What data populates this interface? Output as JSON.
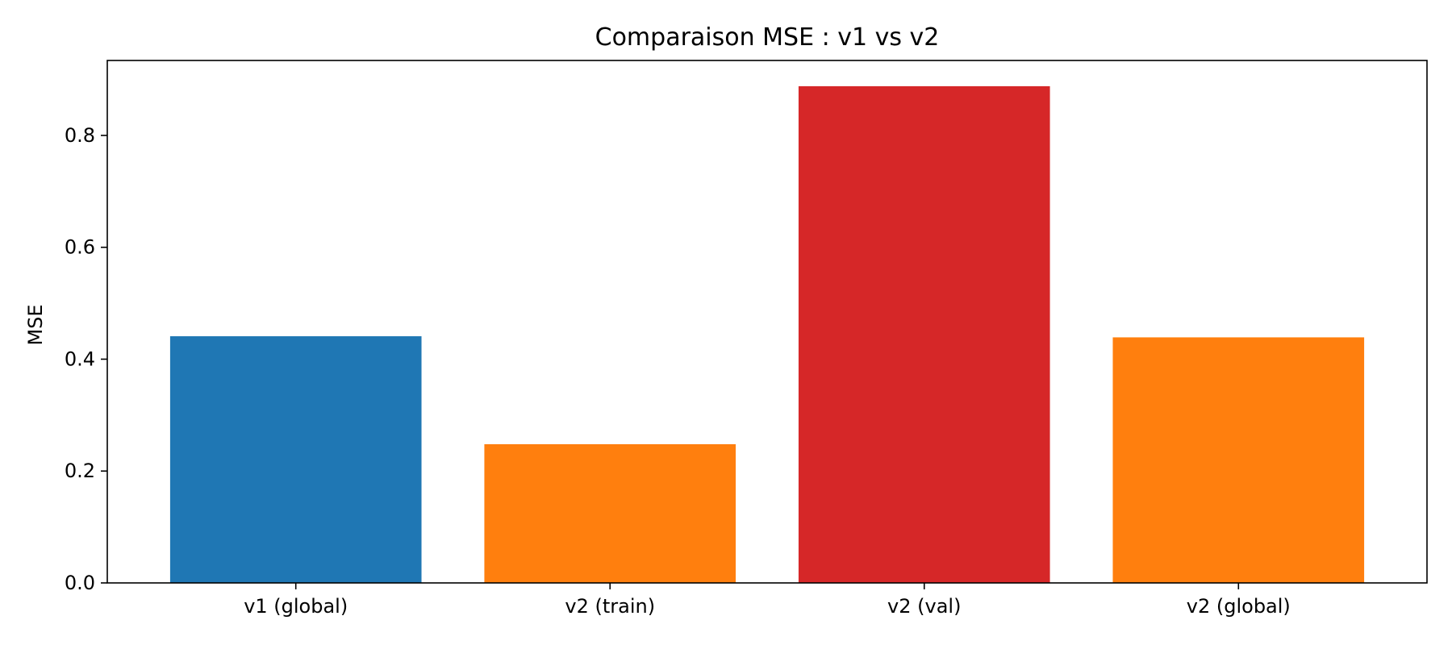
{
  "chart_data": {
    "type": "bar",
    "title": "Comparaison MSE : v1 vs v2",
    "xlabel": "",
    "ylabel": "MSE",
    "categories": [
      "v1 (global)",
      "v2 (train)",
      "v2 (val)",
      "v2 (global)"
    ],
    "values": [
      0.441,
      0.248,
      0.888,
      0.439
    ],
    "colors": [
      "#1f77b4",
      "#ff7f0e",
      "#d62728",
      "#ff7f0e"
    ],
    "ylim": [
      0,
      0.934
    ],
    "yticks": [
      0.0,
      0.2,
      0.4,
      0.6,
      0.8
    ],
    "ytick_labels": [
      "0.0",
      "0.2",
      "0.4",
      "0.6",
      "0.8"
    ],
    "grid": false,
    "legend": "none"
  }
}
